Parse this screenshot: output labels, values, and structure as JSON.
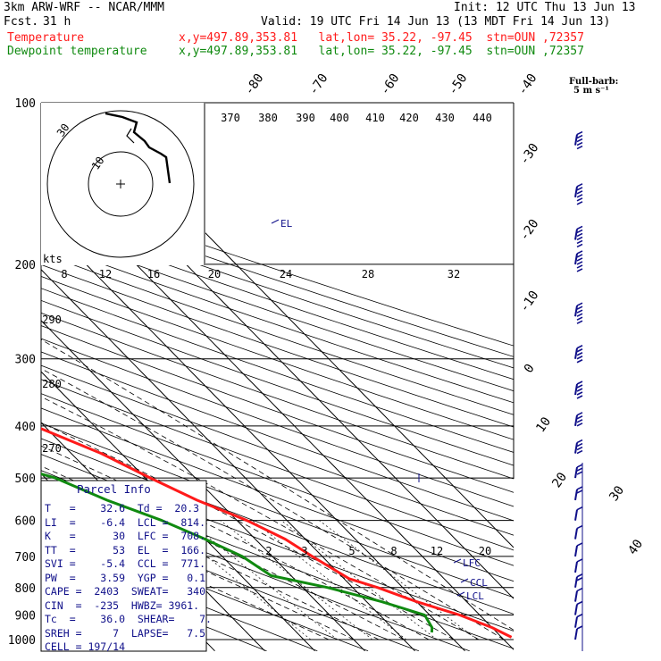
{
  "header": {
    "model": "3km ARW-WRF -- NCAR/MMM",
    "init": "Init: 12 UTC Thu 13 Jun 13",
    "fcst_label": "Fcst.",
    "fcst_value": "31 h",
    "valid": "Valid: 19 UTC Fri 14 Jun 13 (13 MDT Fri 14 Jun 13)",
    "line_temp_name": "Temperature",
    "line_temp_info": "x,y=497.89,353.81   lat,lon= 35.22, -97.45  stn=OUN ,72357",
    "line_dew_name": "Dewpoint temperature",
    "line_dew_info": "x,y=497.89,353.81   lat,lon= 35.22, -97.45  stn=OUN ,72357",
    "full_barb": "Full-barb:",
    "full_barb_units": "5 m s⁻¹"
  },
  "colors": {
    "temperature": "#ff1a1a",
    "dewpoint": "#108a10",
    "parcel": "#10108a",
    "axis": "#000000"
  },
  "chart_data": {
    "type": "line",
    "title": "",
    "pressure_levels_hpa": [
      100,
      200,
      300,
      400,
      500,
      600,
      700,
      800,
      900,
      1000
    ],
    "pressure_range": [
      100,
      1000
    ],
    "isotherm_labels_c": [
      "-80",
      "-70",
      "-60",
      "-50",
      "-40",
      "-30",
      "-20",
      "-10",
      "0",
      "10",
      "20",
      "30",
      "40"
    ],
    "theta_labels_k": [
      "370",
      "380",
      "390",
      "400",
      "410",
      "420",
      "430",
      "440",
      "290",
      "280",
      "270"
    ],
    "mixing_ratio_labels": [
      "2",
      "3",
      "5",
      "8",
      "12",
      "20"
    ],
    "series": [
      {
        "name": "Temperature",
        "points": [
          [
            100,
            -53
          ],
          [
            150,
            -56
          ],
          [
            190,
            -55
          ],
          [
            200,
            -53
          ],
          [
            250,
            -45
          ],
          [
            300,
            -37
          ],
          [
            350,
            -28
          ],
          [
            400,
            -22
          ],
          [
            450,
            -14
          ],
          [
            500,
            -9
          ],
          [
            550,
            -4
          ],
          [
            600,
            2
          ],
          [
            650,
            6
          ],
          [
            700,
            8
          ],
          [
            770,
            11
          ],
          [
            800,
            15
          ],
          [
            850,
            20
          ],
          [
            900,
            26
          ],
          [
            950,
            30
          ],
          [
            990,
            32
          ]
        ]
      },
      {
        "name": "Dewpoint temperature",
        "points": [
          [
            100,
            -82
          ],
          [
            130,
            -89
          ],
          [
            160,
            -93
          ],
          [
            200,
            -79
          ],
          [
            250,
            -72
          ],
          [
            280,
            -72
          ],
          [
            300,
            -65
          ],
          [
            350,
            -53
          ],
          [
            380,
            -57
          ],
          [
            420,
            -54
          ],
          [
            460,
            -38
          ],
          [
            500,
            -28
          ],
          [
            550,
            -22
          ],
          [
            600,
            -15
          ],
          [
            650,
            -10
          ],
          [
            700,
            -6
          ],
          [
            760,
            -4
          ],
          [
            800,
            5
          ],
          [
            850,
            13
          ],
          [
            900,
            19
          ],
          [
            950,
            18
          ],
          [
            970,
            17
          ]
        ]
      }
    ],
    "level_marks": [
      "EL",
      "LFC",
      "CCL",
      "LCL"
    ],
    "hodograph": {
      "unit_label": "kts",
      "ring_labels": [
        "10",
        "30"
      ],
      "speed_axis_labels": [
        "8",
        "12",
        "16",
        "20",
        "24",
        "28",
        "32"
      ]
    },
    "wind_barbs": {
      "points": [
        [
          120,
          -30
        ],
        [
          150,
          -33
        ],
        [
          180,
          -34
        ],
        [
          200,
          -34
        ],
        [
          250,
          -33
        ],
        [
          300,
          -30
        ],
        [
          350,
          -28
        ],
        [
          400,
          -25
        ],
        [
          450,
          -22
        ],
        [
          500,
          -15
        ],
        [
          550,
          -12
        ],
        [
          600,
          -8
        ],
        [
          650,
          -7
        ],
        [
          700,
          -6
        ],
        [
          750,
          -8
        ],
        [
          800,
          -9
        ],
        [
          850,
          -7
        ],
        [
          900,
          -6
        ],
        [
          950,
          -5
        ],
        [
          1000,
          -3
        ]
      ]
    }
  },
  "parcel_info": {
    "title": "Parcel Info",
    "rows": [
      "T   =    32.6  Td =  20.3",
      "LI  =    -6.4  LCL =  814.",
      "K   =      30  LFC =  708.",
      "TT  =      53  EL  =  166.",
      "SVI =    -5.4  CCL =  771.",
      "PW  =    3.59  YGP =   0.1",
      "CAPE =  2403  SWEAT=   340",
      "CIN  =  -235  HWBZ= 3961.",
      "Tc  =    36.0  SHEAR=    7.",
      "SREH =     7  LAPSE=   7.5",
      "CELL = 197/14"
    ]
  }
}
